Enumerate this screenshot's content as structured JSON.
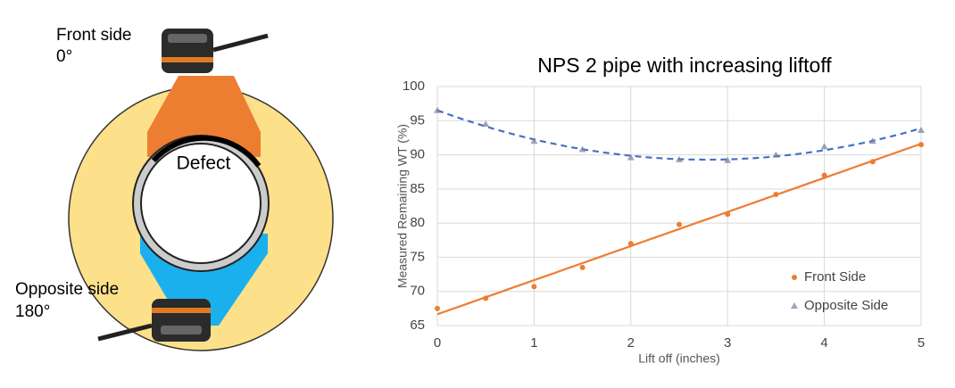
{
  "diagram": {
    "front_label": [
      "Front side",
      "0°"
    ],
    "opposite_label": [
      "Opposite side",
      "180°"
    ],
    "defect_label": "Defect"
  },
  "chart_data": {
    "type": "scatter",
    "title": "NPS 2 pipe with increasing liftoff",
    "x_label": "Lift off (inches)",
    "y_label": "Measured Remaining WT (%)",
    "x": [
      0,
      0.5,
      1,
      1.5,
      2,
      2.5,
      3,
      3.5,
      4,
      4.5,
      5
    ],
    "series": [
      {
        "name": "Front Side",
        "color": "#ed7d31",
        "marker": "circle",
        "trendline": "linear",
        "values": [
          67.5,
          69,
          70.7,
          73.5,
          77,
          79.8,
          81.3,
          84.2,
          87,
          89,
          91.5
        ]
      },
      {
        "name": "Opposite Side",
        "color": "#4472c4",
        "marker": "triangle",
        "trendline": "polynomial",
        "values": [
          96.5,
          94.5,
          92,
          90.8,
          89.6,
          89.3,
          89.2,
          90,
          91.2,
          92,
          93.6
        ]
      }
    ],
    "xlim": [
      0,
      5
    ],
    "xticks": [
      0,
      1,
      2,
      3,
      4,
      5
    ],
    "ylim": [
      65,
      100
    ],
    "yticks": [
      65,
      70,
      75,
      80,
      85,
      90,
      95,
      100
    ],
    "grid": true,
    "legend": "lower right"
  }
}
